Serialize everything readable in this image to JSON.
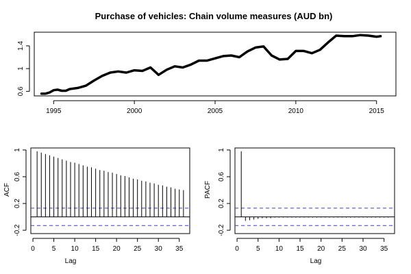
{
  "chart_data": [
    {
      "type": "line",
      "title": "Purchase of vehicles: Chain volume measures (AUD bn)",
      "xlabel": "",
      "ylabel": "",
      "xlim": [
        1993.8,
        2016.2
      ],
      "ylim": [
        0.52,
        1.64
      ],
      "xticks": [
        1995,
        2000,
        2005,
        2010,
        2015
      ],
      "yticks": [
        0.6,
        1.0,
        1.4
      ],
      "series": [
        {
          "x": [
            1994.25,
            1994.5,
            1994.75,
            1995.0,
            1995.25,
            1995.5,
            1995.75,
            1996.0,
            1996.5,
            1997.0,
            1997.5,
            1998.0,
            1998.5,
            1999.0,
            1999.5,
            2000.0,
            2000.5,
            2001.0,
            2001.5,
            2002.0,
            2002.5,
            2003.0,
            2003.5,
            2004.0,
            2004.5,
            2005.0,
            2005.5,
            2006.0,
            2006.5,
            2007.0,
            2007.5,
            2008.0,
            2008.5,
            2009.0,
            2009.5,
            2010.0,
            2010.5,
            2011.0,
            2011.5,
            2012.0,
            2012.5,
            2013.0,
            2013.5,
            2014.0,
            2014.5,
            2015.0,
            2015.25
          ],
          "y": [
            0.56,
            0.56,
            0.58,
            0.62,
            0.63,
            0.61,
            0.61,
            0.64,
            0.66,
            0.7,
            0.79,
            0.87,
            0.93,
            0.95,
            0.93,
            0.97,
            0.96,
            1.02,
            0.89,
            0.98,
            1.04,
            1.02,
            1.07,
            1.14,
            1.14,
            1.18,
            1.22,
            1.23,
            1.2,
            1.3,
            1.37,
            1.39,
            1.23,
            1.16,
            1.17,
            1.31,
            1.31,
            1.27,
            1.33,
            1.46,
            1.58,
            1.57,
            1.57,
            1.59,
            1.58,
            1.56,
            1.57
          ]
        }
      ]
    },
    {
      "type": "bar",
      "title": "",
      "xlabel": "Lag",
      "ylabel": "ACF",
      "xlim": [
        -0.5,
        37.5
      ],
      "ylim": [
        -0.25,
        1.03
      ],
      "xticks": [
        0,
        5,
        10,
        15,
        20,
        25,
        30,
        35
      ],
      "yticks": [
        -0.2,
        0.2,
        0.6,
        1.0
      ],
      "ci": 0.13,
      "lags": [
        1,
        2,
        3,
        4,
        5,
        6,
        7,
        8,
        9,
        10,
        11,
        12,
        13,
        14,
        15,
        16,
        17,
        18,
        19,
        20,
        21,
        22,
        23,
        24,
        25,
        26,
        27,
        28,
        29,
        30,
        31,
        32,
        33,
        34,
        35,
        36
      ],
      "values": [
        0.98,
        0.96,
        0.94,
        0.92,
        0.9,
        0.88,
        0.86,
        0.84,
        0.82,
        0.81,
        0.79,
        0.77,
        0.75,
        0.74,
        0.72,
        0.7,
        0.69,
        0.67,
        0.66,
        0.64,
        0.62,
        0.61,
        0.59,
        0.57,
        0.56,
        0.54,
        0.53,
        0.51,
        0.5,
        0.48,
        0.47,
        0.45,
        0.44,
        0.42,
        0.41,
        0.4
      ]
    },
    {
      "type": "bar",
      "title": "",
      "xlabel": "Lag",
      "ylabel": "PACF",
      "xlim": [
        -0.5,
        37.5
      ],
      "ylim": [
        -0.25,
        1.03
      ],
      "xticks": [
        0,
        5,
        10,
        15,
        20,
        25,
        30,
        35
      ],
      "yticks": [
        -0.2,
        0.2,
        0.6,
        1.0
      ],
      "ci": 0.13,
      "lags": [
        1,
        2,
        3,
        4,
        5,
        6,
        7,
        8,
        9,
        10,
        11,
        12,
        13,
        14,
        15,
        16,
        17,
        18,
        19,
        20,
        21,
        22,
        23,
        24,
        25,
        26,
        27,
        28,
        29,
        30,
        31,
        32,
        33,
        34,
        35,
        36
      ],
      "values": [
        0.98,
        -0.06,
        -0.05,
        -0.04,
        -0.03,
        -0.02,
        -0.02,
        -0.02,
        -0.01,
        -0.01,
        -0.01,
        -0.01,
        -0.01,
        -0.01,
        -0.01,
        -0.01,
        -0.01,
        -0.01,
        -0.01,
        -0.01,
        -0.01,
        -0.01,
        -0.01,
        -0.01,
        -0.01,
        -0.01,
        -0.01,
        -0.01,
        -0.01,
        -0.01,
        -0.01,
        -0.01,
        -0.01,
        -0.01,
        -0.01,
        -0.01
      ]
    }
  ],
  "colors": {
    "series": "#000000",
    "ci": "#3b3bd6",
    "axis": "#000000"
  }
}
